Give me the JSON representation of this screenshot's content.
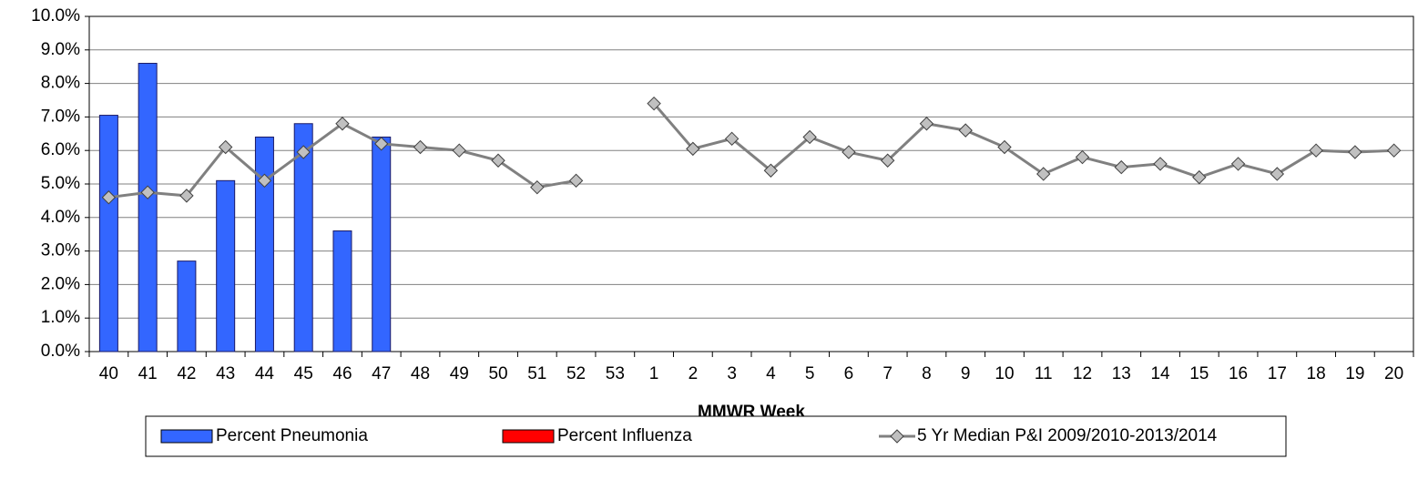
{
  "chart_data": {
    "type": "bar_line",
    "x_label": "MMWR Week",
    "categories": [
      "40",
      "41",
      "42",
      "43",
      "44",
      "45",
      "46",
      "47",
      "48",
      "49",
      "50",
      "51",
      "52",
      "53",
      "1",
      "2",
      "3",
      "4",
      "5",
      "6",
      "7",
      "8",
      "9",
      "10",
      "11",
      "12",
      "13",
      "14",
      "15",
      "16",
      "17",
      "18",
      "19",
      "20"
    ],
    "series": [
      {
        "name": "Percent Pneumonia",
        "type": "bar",
        "color": "#3366ff",
        "values": [
          7.05,
          8.6,
          2.7,
          5.1,
          6.4,
          6.8,
          3.6,
          6.4,
          null,
          null,
          null,
          null,
          null,
          null,
          null,
          null,
          null,
          null,
          null,
          null,
          null,
          null,
          null,
          null,
          null,
          null,
          null,
          null,
          null,
          null,
          null,
          null,
          null,
          null
        ]
      },
      {
        "name": "Percent Influenza",
        "type": "bar",
        "color": "#ff0000",
        "values": [
          null,
          null,
          null,
          null,
          null,
          null,
          null,
          null,
          null,
          null,
          null,
          null,
          null,
          null,
          null,
          null,
          null,
          null,
          null,
          null,
          null,
          null,
          null,
          null,
          null,
          null,
          null,
          null,
          null,
          null,
          null,
          null,
          null,
          null
        ]
      },
      {
        "name": "5 Yr Median P&I 2009/2010-2013/2014",
        "type": "line",
        "color": "#808080",
        "values": [
          4.6,
          4.75,
          4.65,
          6.1,
          5.1,
          5.95,
          6.8,
          6.2,
          6.1,
          6.0,
          5.7,
          4.9,
          5.1,
          null,
          7.4,
          6.05,
          6.35,
          5.4,
          6.4,
          5.95,
          5.7,
          6.8,
          6.6,
          6.1,
          5.3,
          5.8,
          5.5,
          5.6,
          5.2,
          5.6,
          5.3,
          6.0,
          5.95,
          6.0
        ]
      }
    ],
    "ylim": [
      0,
      10
    ],
    "yticks": [
      {
        "value": 0,
        "label": "0.0%"
      },
      {
        "value": 1,
        "label": "1.0%"
      },
      {
        "value": 2,
        "label": "2.0%"
      },
      {
        "value": 3,
        "label": "3.0%"
      },
      {
        "value": 4,
        "label": "4.0%"
      },
      {
        "value": 5,
        "label": "5.0%"
      },
      {
        "value": 6,
        "label": "6.0%"
      },
      {
        "value": 7,
        "label": "7.0%"
      },
      {
        "value": 8,
        "label": "8.0%"
      },
      {
        "value": 9,
        "label": "9.0%"
      },
      {
        "value": 10,
        "label": "10.0%"
      }
    ],
    "grid": true,
    "legend": "bottom"
  }
}
